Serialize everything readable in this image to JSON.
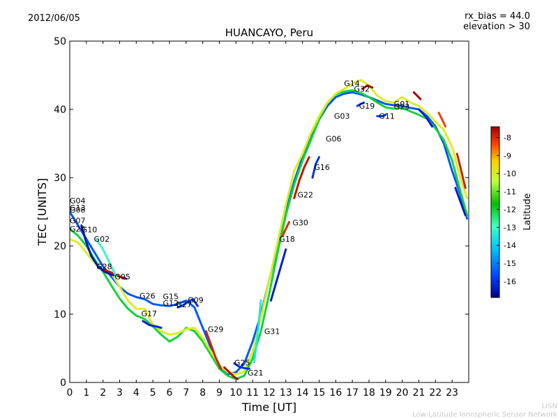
{
  "date_label": "2012/06/05",
  "header_right": {
    "rx_bias": "rx_bias = 44.0",
    "elevation": "elevation > 30"
  },
  "chart_data": {
    "type": "line",
    "title": "HUANCAYO, Peru",
    "xlabel": "Time [UT]",
    "ylabel": "TEC [UNITS]",
    "xlim": [
      0,
      24
    ],
    "ylim": [
      0,
      50
    ],
    "x_ticks": [
      "0",
      "1",
      "2",
      "3",
      "4",
      "5",
      "6",
      "7",
      "8",
      "9",
      "10",
      "11",
      "12",
      "13",
      "14",
      "15",
      "16",
      "17",
      "18",
      "19",
      "20",
      "21",
      "22",
      "23"
    ],
    "y_ticks": [
      "0",
      "10",
      "20",
      "30",
      "40",
      "50"
    ],
    "colorbar": {
      "label": "Latitude",
      "range": [
        -16.9,
        -7.4
      ],
      "ticks": [
        "-8",
        "-9",
        "-10",
        "-11",
        "-12",
        "-13",
        "-14",
        "-15",
        "-16"
      ],
      "colors": [
        "#00008f",
        "#0040ff",
        "#00bfff",
        "#40ffbf",
        "#00c000",
        "#bfff40",
        "#ffd000",
        "#ff4000",
        "#9f0000"
      ]
    },
    "series": [
      {
        "name": "s1",
        "latitude": -15.5,
        "x": [
          0,
          0.5,
          1,
          1.5,
          2,
          2.5,
          3,
          3.5,
          4,
          4.5,
          5,
          5.5,
          6,
          6.5,
          7,
          7.5,
          8,
          8.5,
          9,
          9.5,
          10,
          10.5,
          11,
          11.5,
          12,
          12.5,
          13,
          13.5,
          14,
          14.5,
          15,
          15.5,
          16,
          16.5,
          17,
          17.5,
          18,
          18.5,
          19,
          19.5,
          20,
          20.5,
          21,
          21.5,
          22,
          22.5,
          23,
          23.5,
          23.9
        ],
        "y": [
          25,
          23,
          21,
          19,
          17,
          15.5,
          14,
          13,
          12.5,
          12.2,
          11.5,
          11.3,
          11.2,
          11.5,
          12,
          11,
          8,
          5,
          2.5,
          1.2,
          1.5,
          2.8,
          6,
          10,
          15,
          20,
          25,
          29.5,
          33,
          36,
          38.5,
          40.5,
          41.8,
          42.3,
          42.5,
          42.2,
          41.8,
          41.3,
          40.8,
          40.6,
          40.5,
          40.2,
          40,
          39,
          37.5,
          35,
          31,
          27.5,
          24
        ]
      },
      {
        "name": "s2",
        "latitude": -12.5,
        "x": [
          0,
          0.5,
          1,
          1.5,
          2,
          2.5,
          3,
          3.5,
          4,
          4.5,
          5,
          5.5,
          6,
          6.5,
          7,
          7.5,
          8,
          8.5,
          9,
          9.5,
          10,
          10.5,
          11,
          11.5,
          12,
          12.5,
          13,
          13.5,
          14,
          14.5,
          15,
          15.5,
          16,
          16.5,
          17,
          17.5,
          18,
          18.5,
          19,
          19.5,
          20,
          20.5,
          21,
          21.5,
          22,
          22.5,
          23,
          23.5,
          23.9
        ],
        "y": [
          22.5,
          21.5,
          20,
          18,
          16.2,
          14.2,
          12.3,
          10.8,
          9.8,
          9.3,
          8.2,
          7,
          6,
          6.7,
          8,
          7.5,
          6,
          4,
          2,
          1,
          0.5,
          1,
          3.5,
          7.5,
          13,
          19,
          24.5,
          29,
          32.5,
          35.5,
          38.5,
          41,
          42.2,
          42.6,
          42.8,
          42.4,
          41.8,
          41,
          40.3,
          40.1,
          40.2,
          39.7,
          39.2,
          38.6,
          37.2,
          35.5,
          32.5,
          28,
          24.5
        ]
      },
      {
        "name": "s3",
        "latitude": -10.5,
        "x": [
          0,
          0.5,
          1,
          1.5,
          2,
          2.5,
          3,
          3.5,
          4,
          4.5,
          5,
          5.5,
          6,
          6.5,
          7,
          7.5,
          8,
          8.5,
          9,
          9.5,
          10,
          10.5,
          11,
          11.5,
          12,
          12.5,
          13,
          13.5,
          14,
          14.5,
          15,
          15.5,
          16,
          16.5,
          17,
          17.5,
          18,
          18.5,
          19,
          19.5,
          20,
          20.5,
          21,
          21.5,
          22,
          22.5,
          23,
          23.5,
          23.9
        ],
        "y": [
          21,
          20.5,
          19,
          17.5,
          16.5,
          16,
          14,
          12,
          10.8,
          10.8,
          8.5,
          7.5,
          7,
          7.2,
          7.8,
          8,
          6.5,
          4.5,
          2.5,
          1.5,
          1.2,
          1.6,
          4.5,
          9.5,
          15,
          20.5,
          26,
          31,
          33.5,
          36.5,
          39,
          41,
          42.3,
          43,
          43.8,
          44.3,
          43.5,
          42,
          41.2,
          41,
          41.8,
          41,
          40.5,
          39.5,
          38.2,
          37,
          34.5,
          30,
          27
        ]
      },
      {
        "name": "s4",
        "latitude": -16.5,
        "x": [
          0.7,
          1,
          1.3,
          1.7,
          2.1,
          2.5,
          2.9,
          3.4
        ],
        "y": [
          23,
          20.5,
          18.5,
          17,
          16.2,
          15.8,
          15.6,
          15.2
        ]
      },
      {
        "name": "s5",
        "latitude": -7.8,
        "x": [
          2.1,
          2.5,
          2.9,
          3.3
        ],
        "y": [
          16.5,
          16.1,
          15.6,
          15.2
        ]
      },
      {
        "name": "s6",
        "latitude": -13.5,
        "x": [
          1.6,
          2,
          2.4,
          2.8
        ],
        "y": [
          21,
          19.5,
          17.5,
          15.5
        ]
      },
      {
        "name": "s7",
        "latitude": -16.2,
        "x": [
          4.4,
          4.8,
          5.2,
          5.5
        ],
        "y": [
          9,
          8.4,
          8.2,
          8
        ]
      },
      {
        "name": "s8",
        "latitude": -16,
        "x": [
          6.5,
          6.8,
          7.1,
          7.4,
          7.7
        ],
        "y": [
          11,
          11.3,
          11.8,
          12.2,
          11.2
        ]
      },
      {
        "name": "s9",
        "latitude": -8,
        "x": [
          8.2,
          8.5,
          8.8,
          9.1
        ],
        "y": [
          7.5,
          5.5,
          3.5,
          2
        ]
      },
      {
        "name": "s10",
        "latitude": -16,
        "x": [
          9.9,
          10.2,
          10.5,
          10.8
        ],
        "y": [
          2.8,
          2.3,
          2.1,
          2
        ]
      },
      {
        "name": "s11",
        "latitude": -7.6,
        "x": [
          9.3,
          9.6,
          9.9,
          10.1
        ],
        "y": [
          2.2,
          1.5,
          0.8,
          0.5
        ]
      },
      {
        "name": "s12",
        "latitude": -16.3,
        "x": [
          12.1,
          12.4,
          12.7,
          13
        ],
        "y": [
          12,
          14.5,
          17,
          19.5
        ]
      },
      {
        "name": "s13",
        "latitude": -8.2,
        "x": [
          12.8,
          13,
          13.2
        ],
        "y": [
          21.5,
          22.5,
          23.5
        ]
      },
      {
        "name": "s14",
        "latitude": -7.8,
        "x": [
          13.5,
          13.8,
          14.1,
          14.4
        ],
        "y": [
          27,
          29.5,
          31.5,
          33
        ]
      },
      {
        "name": "s15",
        "latitude": -16,
        "x": [
          14.6,
          14.8,
          15
        ],
        "y": [
          30,
          32,
          33
        ]
      },
      {
        "name": "s16",
        "latitude": -7.6,
        "x": [
          17.6,
          17.9,
          18.2
        ],
        "y": [
          43,
          43.5,
          43.2
        ]
      },
      {
        "name": "s17",
        "latitude": -16,
        "x": [
          17.3,
          17.5,
          17.7
        ],
        "y": [
          40.5,
          40.8,
          41
        ]
      },
      {
        "name": "s18",
        "latitude": -16,
        "x": [
          18.5,
          18.8,
          19
        ],
        "y": [
          39,
          39,
          39.2
        ]
      },
      {
        "name": "s19",
        "latitude": -7.5,
        "x": [
          20.7,
          20.9,
          21.1
        ],
        "y": [
          42.5,
          42,
          41.5
        ]
      },
      {
        "name": "s20",
        "latitude": -16.3,
        "x": [
          21,
          21.4,
          21.8
        ],
        "y": [
          40,
          39,
          37.5
        ]
      },
      {
        "name": "s21",
        "latitude": -8.5,
        "x": [
          22.2,
          22.4,
          22.6
        ],
        "y": [
          39.5,
          38.5,
          37.5
        ]
      },
      {
        "name": "s22",
        "latitude": -16.3,
        "x": [
          23.2,
          23.5,
          23.8
        ],
        "y": [
          28.5,
          26.5,
          24.5
        ]
      },
      {
        "name": "s23",
        "latitude": -8,
        "x": [
          23.3,
          23.5,
          23.8
        ],
        "y": [
          33.5,
          31.5,
          28.5
        ]
      },
      {
        "name": "s24",
        "latitude": -13.8,
        "x": [
          11.1,
          11.3,
          11.5
        ],
        "y": [
          3,
          7,
          12
        ]
      }
    ],
    "prn_labels": [
      {
        "text": "G04",
        "x": 0,
        "y": 26.2
      },
      {
        "text": "G13",
        "x": 0,
        "y": 25.2
      },
      {
        "text": "G08",
        "x": 0,
        "y": 24.9
      },
      {
        "text": "G07",
        "x": 0,
        "y": 23.3
      },
      {
        "text": "G20",
        "x": 0,
        "y": 22.1
      },
      {
        "text": "G10",
        "x": 0.7,
        "y": 22
      },
      {
        "text": "G02",
        "x": 1.45,
        "y": 20.6
      },
      {
        "text": "G28",
        "x": 1.6,
        "y": 16.6
      },
      {
        "text": "G05",
        "x": 2.7,
        "y": 15.1
      },
      {
        "text": "G26",
        "x": 4.2,
        "y": 12.3
      },
      {
        "text": "G17",
        "x": 4.3,
        "y": 9.7
      },
      {
        "text": "G15",
        "x": 5.6,
        "y": 12.2
      },
      {
        "text": "G12",
        "x": 5.6,
        "y": 11.2
      },
      {
        "text": "G27",
        "x": 6.4,
        "y": 11
      },
      {
        "text": "G09",
        "x": 7.1,
        "y": 11.7
      },
      {
        "text": "G29",
        "x": 8.3,
        "y": 7.4
      },
      {
        "text": "G25",
        "x": 9.9,
        "y": 2.5
      },
      {
        "text": "G21",
        "x": 10.7,
        "y": 1
      },
      {
        "text": "G31",
        "x": 11.7,
        "y": 7.1
      },
      {
        "text": "G18",
        "x": 12.6,
        "y": 20.6
      },
      {
        "text": "G30",
        "x": 13.4,
        "y": 23
      },
      {
        "text": "G22",
        "x": 13.7,
        "y": 27.1
      },
      {
        "text": "G16",
        "x": 14.7,
        "y": 31.1
      },
      {
        "text": "G06",
        "x": 15.4,
        "y": 35.3
      },
      {
        "text": "G03",
        "x": 15.9,
        "y": 38.6
      },
      {
        "text": "G14",
        "x": 16.5,
        "y": 43.4
      },
      {
        "text": "G32",
        "x": 17.1,
        "y": 42.6
      },
      {
        "text": "G19",
        "x": 17.4,
        "y": 40.1
      },
      {
        "text": "G11",
        "x": 18.6,
        "y": 38.6
      },
      {
        "text": "G01",
        "x": 19.5,
        "y": 40.4
      },
      {
        "text": "G23",
        "x": 19.5,
        "y": 40
      }
    ]
  },
  "credits": {
    "line1": "LISN",
    "line2": "Low-Latitude Ionospheric Sensor Network"
  }
}
